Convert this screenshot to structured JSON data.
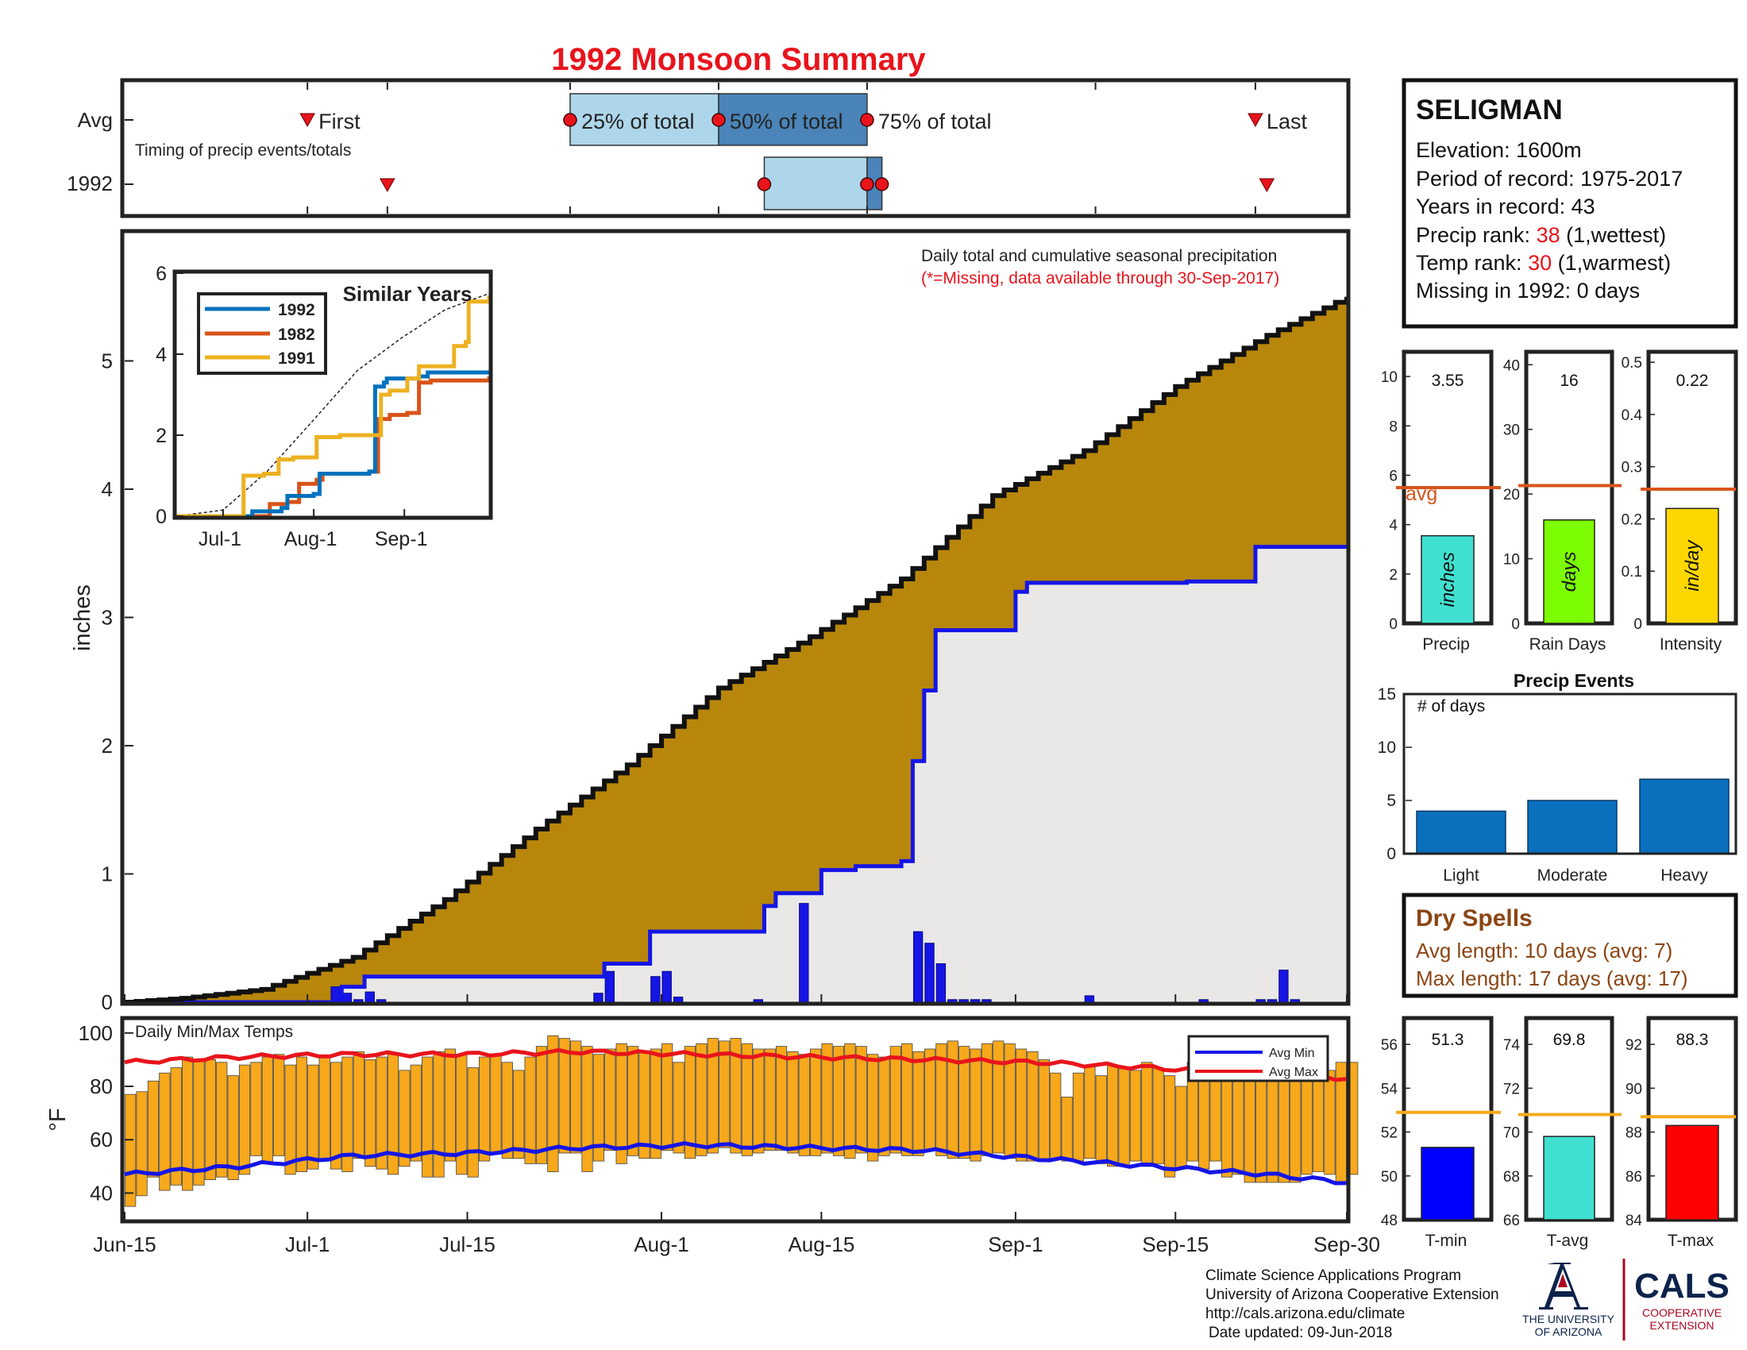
{
  "title": "1992 Monsoon Summary",
  "colors": {
    "title": "#e8141c",
    "cumulative_avg_fill": "#b8860b",
    "cumulative_year_fill": "#e9e8e7",
    "year_line": "#1515e6",
    "daily_bar": "#1515e6",
    "temp_bar": "#f7a81b",
    "avg_max_line": "#e8141c",
    "avg_min_line": "#1515e6",
    "avg_ref_line": "#d9541a",
    "temp_ref_line": "#f7a81b",
    "event_bar": "#0a6fbd",
    "dry_spell_text": "#8b4513",
    "timing_light": "#aed6ea",
    "timing_dark": "#4a84b8",
    "marker": "#e8141c",
    "sim_1992": "#0072bd",
    "sim_1982": "#d95319",
    "sim_1991": "#edb120"
  },
  "timing": {
    "label_avg": "Avg",
    "label_year": "1992",
    "subtitle": "Timing of precip events/totals",
    "first_label": "First",
    "p25_label": "25% of total",
    "p50_label": "50% of total",
    "p75_label": "75% of total",
    "last_label": "Last",
    "avg_day": {
      "first": 16,
      "p25": 39,
      "p50": 52,
      "p75": 65,
      "last": 99
    },
    "year_day": {
      "first": 23,
      "p25": 56,
      "p50": 65,
      "p75": 66.3,
      "last": 100
    }
  },
  "station": {
    "name": "SELIGMAN",
    "elevation": "Elevation: 1600m",
    "period": "Period of record: 1975-2017",
    "years": "Years in record: 43",
    "precip_rank_label": "Precip rank: ",
    "precip_rank_value": "38",
    "precip_rank_suffix": " (1,wettest)",
    "temp_rank_label": "Temp rank: ",
    "temp_rank_value": "30",
    "temp_rank_suffix": " (1,warmest)",
    "missing": "Missing in 1992: 0 days"
  },
  "main_chart": {
    "note_line1": "Daily total and cumulative seasonal precipitation",
    "note_line2": "(*=Missing, data available through 30-Sep-2017)",
    "ylabel": "inches",
    "y_ticks": [
      "0",
      "1",
      "2",
      "3",
      "4",
      "5"
    ],
    "x_ticks": [
      "Jun-15",
      "Jul-1",
      "Jul-15",
      "Aug-1",
      "Aug-15",
      "Sep-1",
      "Sep-15",
      "Sep-30"
    ]
  },
  "similar_years": {
    "title": "Similar Years",
    "y_ticks": [
      "0",
      "2",
      "4",
      "6"
    ],
    "x_ticks": [
      "Jul-1",
      "Aug-1",
      "Sep-1"
    ],
    "legend": [
      "1992",
      "1982",
      "1991"
    ]
  },
  "temps_chart": {
    "title": "Daily Min/Max Temps",
    "ylabel": "°F",
    "y_ticks": [
      "40",
      "60",
      "80",
      "100"
    ],
    "legend_min": "Avg Min",
    "legend_max": "Avg Max"
  },
  "bars": {
    "precip": {
      "value": "3.55",
      "unit": "inches",
      "label": "Precip",
      "ticks": [
        "0",
        "2",
        "4",
        "6",
        "8",
        "10"
      ],
      "avg_label": "avg"
    },
    "rain_days": {
      "value": "16",
      "unit": "days",
      "label": "Rain Days",
      "ticks": [
        "0",
        "10",
        "20",
        "30",
        "40"
      ]
    },
    "intensity": {
      "value": "0.22",
      "unit": "in/day",
      "label": "Intensity",
      "ticks": [
        "0",
        "0.1",
        "0.2",
        "0.3",
        "0.4",
        "0.5"
      ]
    }
  },
  "events": {
    "title": "Precip Events",
    "subtitle": "# of days",
    "y_ticks": [
      "0",
      "5",
      "10",
      "15"
    ],
    "categories": [
      "Light",
      "Moderate",
      "Heavy"
    ]
  },
  "dry_spells": {
    "title": "Dry Spells",
    "avg_length": "Avg length: 10 days (avg: 7)",
    "max_length": "Max length: 17 days (avg: 17)"
  },
  "temp_bars": {
    "tmin": {
      "value": "51.3",
      "label": "T-min",
      "ticks": [
        "48",
        "50",
        "52",
        "54",
        "56"
      ]
    },
    "tavg": {
      "value": "69.8",
      "label": "T-avg",
      "ticks": [
        "66",
        "68",
        "70",
        "72",
        "74"
      ]
    },
    "tmax": {
      "value": "88.3",
      "label": "T-max",
      "ticks": [
        "84",
        "86",
        "88",
        "90",
        "92"
      ]
    }
  },
  "footer": {
    "line1": "Climate Science Applications Program",
    "line2": "University of Arizona Cooperative Extension",
    "line3": "http://cals.arizona.edu/climate",
    "line4": "Date updated: 09-Jun-2018",
    "ua_line1": "THE UNIVERSITY",
    "ua_line2": "OF ARIZONA",
    "cals": "CALS",
    "cals_line1": "COOPERATIVE",
    "cals_line2": "EXTENSION"
  },
  "chart_data": [
    {
      "type": "area",
      "title": "",
      "xlabel": "",
      "ylabel": "inches",
      "ylim": [
        0,
        6
      ],
      "x_domain": [
        "Jun-15",
        "Sep-30"
      ],
      "series": [
        {
          "name": "",
          "kind": "cumulative average (step)",
          "x": [
            0,
            5,
            12,
            20,
            28,
            36,
            44,
            52,
            60,
            68,
            76,
            84,
            92,
            100,
            107
          ],
          "values": [
            0,
            0.03,
            0.1,
            0.35,
            0.8,
            1.35,
            1.85,
            2.45,
            2.85,
            3.3,
            3.95,
            4.3,
            4.8,
            5.2,
            5.5
          ]
        },
        {
          "name": "",
          "kind": "1992 cumulative (step)",
          "x": [
            0,
            18,
            19,
            21,
            40,
            42,
            46,
            48,
            56,
            57,
            60,
            61,
            64,
            67,
            68,
            69,
            70,
            71,
            78,
            79,
            93,
            99,
            107
          ],
          "values": [
            0,
            0,
            0.12,
            0.2,
            0.2,
            0.3,
            0.55,
            0.55,
            0.75,
            0.85,
            0.85,
            1.03,
            1.06,
            1.06,
            1.1,
            1.88,
            2.43,
            2.9,
            3.2,
            3.27,
            3.28,
            3.55,
            3.55
          ]
        },
        {
          "name": "",
          "kind": "daily precipitation (bars)",
          "x": [
            18,
            19,
            20,
            21,
            22,
            41,
            42,
            46,
            47,
            48,
            55,
            59,
            69,
            70,
            71,
            72,
            73,
            74,
            75,
            84,
            94,
            99,
            100,
            101,
            102
          ],
          "values": [
            0.12,
            0.07,
            0.02,
            0.08,
            0.02,
            0.07,
            0.24,
            0.2,
            0.24,
            0.04,
            0.02,
            0.77,
            0.55,
            0.46,
            0.3,
            0.02,
            0.02,
            0.02,
            0.02,
            0.05,
            0.02,
            0.02,
            0.02,
            0.25,
            0.02
          ]
        }
      ]
    },
    {
      "type": "line",
      "title": "Similar Years",
      "xlabel": "",
      "ylabel": "",
      "ylim": [
        0,
        6
      ],
      "x_ticks": [
        "Jul-1",
        "Aug-1",
        "Sep-1"
      ],
      "series": [
        {
          "name": "",
          "kind": "average (dashed)",
          "x": [
            0,
            16,
            31,
            46,
            62,
            77,
            92,
            107
          ],
          "values": [
            0,
            0.15,
            1.1,
            2.3,
            3.6,
            4.4,
            5.1,
            5.5
          ]
        },
        {
          "name": "1992",
          "x": [
            0,
            25,
            26,
            36,
            38,
            47,
            49,
            66,
            68,
            71,
            72,
            83,
            86,
            107
          ],
          "values": [
            0,
            0,
            0.12,
            0.2,
            0.5,
            0.55,
            1.05,
            1.1,
            3.2,
            3.3,
            3.4,
            3.45,
            3.55,
            3.55
          ]
        },
        {
          "name": "1982",
          "x": [
            0,
            30,
            32,
            38,
            42,
            48,
            50,
            66,
            69,
            73,
            79,
            83,
            87,
            107
          ],
          "values": [
            0,
            0,
            0.3,
            0.35,
            0.8,
            0.9,
            1.05,
            1.1,
            2.4,
            2.5,
            2.55,
            3.3,
            3.35,
            3.45
          ]
        },
        {
          "name": "1991",
          "x": [
            0,
            21,
            23,
            30,
            35,
            40,
            48,
            56,
            67,
            70,
            73,
            79,
            83,
            92,
            95,
            99,
            100,
            107
          ],
          "values": [
            0,
            0,
            1.0,
            1.05,
            1.4,
            1.45,
            1.95,
            2.0,
            2.0,
            3.0,
            3.1,
            3.4,
            3.7,
            3.7,
            4.2,
            4.3,
            5.3,
            5.45
          ]
        }
      ]
    },
    {
      "type": "bar",
      "title": "Daily Min/Max Temps",
      "xlabel": "",
      "ylabel": "°F",
      "ylim": [
        30,
        105
      ],
      "x_domain": [
        "Jun-15",
        "Sep-30"
      ],
      "series": [
        {
          "name": "",
          "kind": "daily max",
          "values": [
            77,
            78,
            82,
            85,
            87,
            91,
            90,
            90,
            89,
            84,
            88,
            89,
            91,
            92,
            88,
            91,
            88,
            91,
            89,
            91,
            93,
            90,
            91,
            92,
            86,
            88,
            91,
            93,
            94,
            92,
            87,
            91,
            92,
            89,
            86,
            91,
            95,
            99,
            98,
            97,
            95,
            92,
            94,
            96,
            95,
            93,
            94,
            96,
            89,
            95,
            96,
            98,
            97,
            98,
            96,
            94,
            94,
            95,
            93,
            92,
            94,
            96,
            95,
            96,
            95,
            92,
            91,
            95,
            96,
            93,
            94,
            96,
            97,
            95,
            94,
            96,
            97,
            96,
            94,
            93,
            90,
            85,
            76,
            85,
            88,
            84,
            88,
            87,
            86,
            89,
            87,
            84,
            80,
            89,
            91,
            89,
            86,
            89,
            84,
            83,
            85,
            88,
            86,
            85,
            83,
            86,
            89,
            89
          ],
          "mins": [
            35,
            39,
            46,
            41,
            43,
            41,
            43,
            45,
            46,
            45,
            47,
            54,
            51,
            54,
            47,
            48,
            49,
            52,
            49,
            48,
            53,
            50,
            49,
            47,
            50,
            52,
            46,
            46,
            52,
            47,
            46,
            52,
            55,
            53,
            53,
            51,
            51,
            48,
            55,
            55,
            48,
            52,
            56,
            51,
            54,
            53,
            53,
            56,
            55,
            53,
            54,
            55,
            57,
            55,
            54,
            55,
            56,
            56,
            55,
            54,
            54,
            55,
            54,
            53,
            55,
            52,
            54,
            55,
            54,
            54,
            56,
            54,
            53,
            53,
            52,
            54,
            55,
            53,
            52,
            52,
            52,
            53,
            52,
            52,
            53,
            51,
            50,
            50,
            52,
            50,
            51,
            46,
            49,
            52,
            49,
            52,
            46,
            47,
            44,
            44,
            44,
            44,
            44,
            47,
            48,
            47,
            44,
            47
          ]
        },
        {
          "name": "Avg Max",
          "x": [
            0,
            10,
            20,
            30,
            40,
            50,
            60,
            70,
            80,
            90,
            100,
            107
          ],
          "values": [
            89,
            91,
            92,
            92,
            93,
            92,
            91,
            90,
            89,
            87,
            84,
            83
          ]
        },
        {
          "name": "Avg Min",
          "x": [
            0,
            10,
            20,
            30,
            40,
            50,
            60,
            70,
            80,
            90,
            100,
            107
          ],
          "values": [
            47,
            50,
            54,
            55,
            57,
            58,
            57,
            56,
            53,
            50,
            47,
            44
          ]
        }
      ]
    },
    {
      "type": "bar",
      "title": "",
      "categories": [
        "Precip",
        "Rain Days",
        "Intensity"
      ],
      "values": [
        3.55,
        16,
        0.22
      ],
      "averages": [
        5.5,
        21.3,
        0.257
      ],
      "ylims": [
        [
          0,
          11
        ],
        [
          0,
          42
        ],
        [
          0,
          0.52
        ]
      ]
    },
    {
      "type": "bar",
      "title": "Precip Events",
      "ylabel": "# of days",
      "categories": [
        "Light",
        "Moderate",
        "Heavy"
      ],
      "values": [
        4,
        5,
        7
      ],
      "ylim": [
        0,
        15
      ]
    },
    {
      "type": "bar",
      "title": "",
      "categories": [
        "T-min",
        "T-avg",
        "T-max"
      ],
      "values": [
        51.3,
        69.8,
        88.3
      ],
      "averages": [
        52.9,
        70.8,
        88.7
      ],
      "ylims": [
        [
          48,
          57.2
        ],
        [
          66,
          75.2
        ],
        [
          84,
          93.2
        ]
      ]
    }
  ]
}
